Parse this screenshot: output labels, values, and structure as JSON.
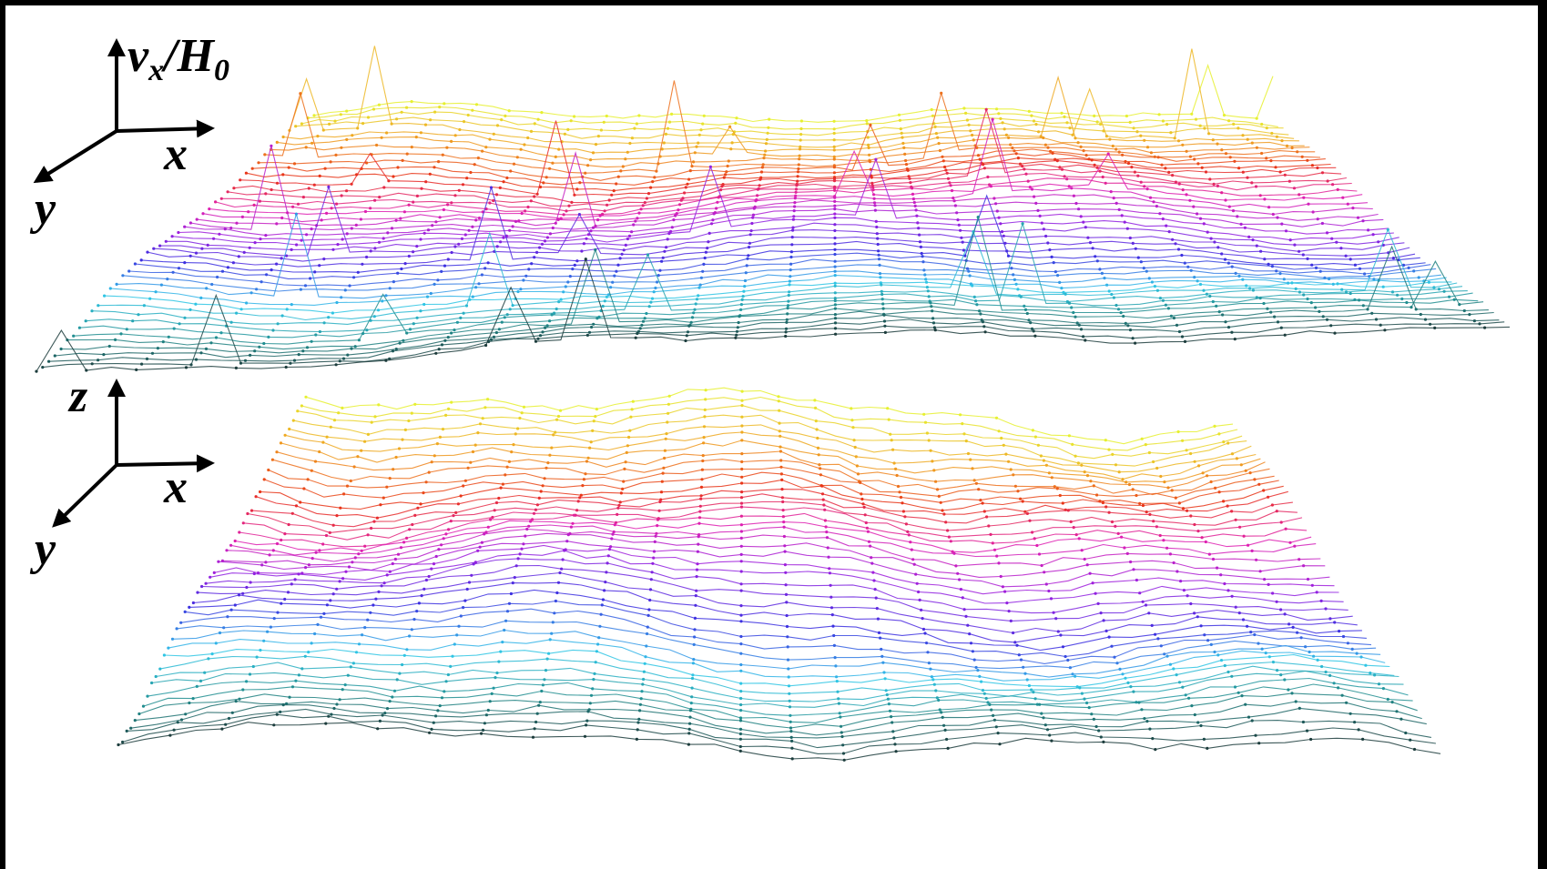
{
  "upper_axes": {
    "vertical": {
      "symbol": "v",
      "subscript": "x",
      "separator": "/",
      "divisor": "H",
      "divisor_subscript": "0"
    },
    "x": "x",
    "y": "y"
  },
  "lower_axes": {
    "vertical": "z",
    "x": "x",
    "y": "y"
  }
}
